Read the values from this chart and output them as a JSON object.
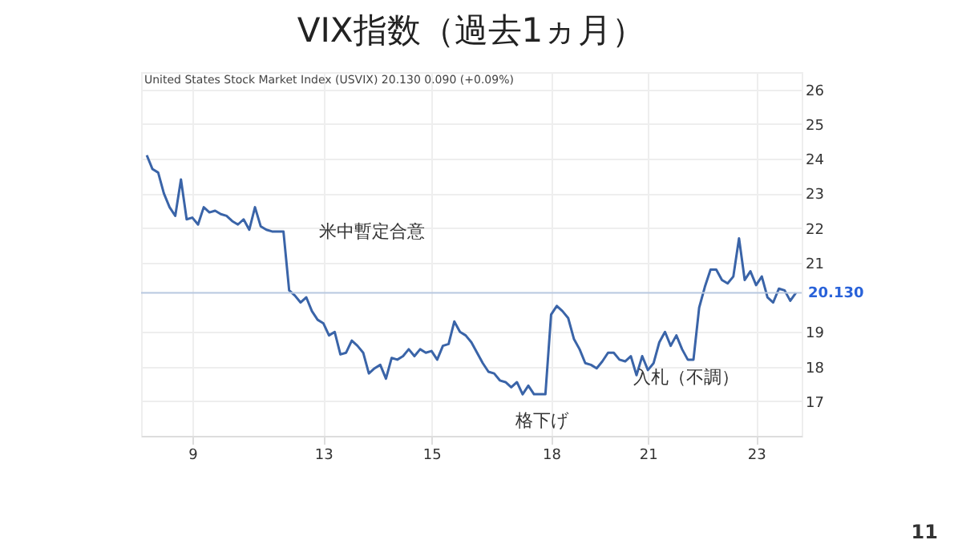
{
  "chart_data": {
    "type": "line",
    "title": "VIX指数（過去1ヵ月）",
    "subtitle": "United States Stock Market Index (USVIX) 20.130 0.090 (+0.09%)",
    "categories": [
      null,
      null,
      null,
      null,
      null,
      null,
      null,
      null,
      "9",
      null,
      null,
      null,
      null,
      null,
      null,
      null,
      null,
      null,
      null,
      null,
      null,
      null,
      null,
      null,
      null,
      null,
      null,
      null,
      null,
      null,
      null,
      "13",
      null,
      null,
      null,
      null,
      null,
      null,
      null,
      null,
      null,
      null,
      null,
      null,
      null,
      null,
      null,
      null,
      null,
      null,
      "15",
      null,
      null,
      null,
      null,
      null,
      null,
      null,
      null,
      null,
      null,
      null,
      null,
      null,
      null,
      null,
      null,
      null,
      null,
      null,
      null,
      "18",
      null,
      null,
      null,
      null,
      null,
      null,
      null,
      null,
      null,
      null,
      null,
      null,
      null,
      null,
      null,
      null,
      "21",
      null,
      null,
      null,
      null,
      null,
      null,
      null,
      null,
      null,
      null,
      null,
      null,
      null,
      null,
      null,
      null,
      null,
      null,
      "23",
      null,
      null,
      null,
      null,
      null,
      null,
      null
    ],
    "series": [
      {
        "color": "#3a64a8",
        "values": [
          24.1,
          23.7,
          23.6,
          23.0,
          22.6,
          22.35,
          23.4,
          22.25,
          22.3,
          22.1,
          22.6,
          22.45,
          22.5,
          22.4,
          22.35,
          22.2,
          22.1,
          22.25,
          21.95,
          22.6,
          22.05,
          21.95,
          21.9,
          21.9,
          21.9,
          20.2,
          20.05,
          19.85,
          20.0,
          19.6,
          19.35,
          19.25,
          18.9,
          19.0,
          18.35,
          18.4,
          18.75,
          18.6,
          18.4,
          17.8,
          17.95,
          18.05,
          17.65,
          18.25,
          18.2,
          18.3,
          18.5,
          18.3,
          18.5,
          18.4,
          18.45,
          18.2,
          18.6,
          18.65,
          19.3,
          19.0,
          18.9,
          18.7,
          18.4,
          18.1,
          17.85,
          17.8,
          17.6,
          17.55,
          17.4,
          17.55,
          17.2,
          17.45,
          17.2,
          17.2,
          17.2,
          19.5,
          19.75,
          19.6,
          19.4,
          18.8,
          18.5,
          18.1,
          18.05,
          17.95,
          18.15,
          18.4,
          18.4,
          18.2,
          18.15,
          18.3,
          17.75,
          18.3,
          17.9,
          18.1,
          18.7,
          19.0,
          18.6,
          18.9,
          18.5,
          18.2,
          18.2,
          19.7,
          20.3,
          20.8,
          20.8,
          20.5,
          20.4,
          20.6,
          21.7,
          20.5,
          20.75,
          20.35,
          20.6,
          20.0,
          19.85,
          20.25,
          20.2,
          19.9,
          20.13
        ]
      }
    ],
    "ylim": [
      16,
      26.5
    ],
    "yticks": [
      17,
      18,
      19,
      21,
      22,
      23,
      24,
      25,
      26
    ],
    "grid": true,
    "ref_lines": [
      {
        "axis": "y",
        "value": 20.13,
        "label": "20.130",
        "color": "#b8c8e0"
      }
    ],
    "annotations": [
      "米中暫定合意",
      "格下げ",
      "入札（不調）",
      "11"
    ]
  }
}
